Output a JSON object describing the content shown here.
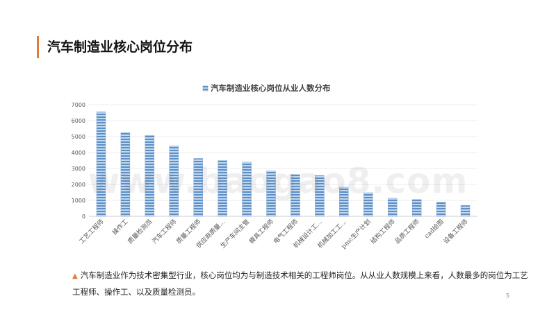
{
  "slide": {
    "title": "汽车制造业核心岗位分布",
    "accent_color": "#e07b39",
    "watermark": "www.baogao8.com",
    "page_number": "5"
  },
  "note": {
    "icon": "triangle-icon",
    "text": "汽车制造业作为技术密集型行业，核心岗位均为与制造技术相关的工程师岗位。从从业人数规模上来看，人数最多的岗位为工艺工程师、操作工、以及质量检测员。"
  },
  "chart_data": {
    "type": "bar",
    "title": "汽车制造业核心岗位从业人数分布",
    "legend": "top-center",
    "series": [
      {
        "name": "汽车制造业核心岗位从业人数分布",
        "color": "#5b8fc7",
        "values": [
          6550,
          5250,
          5080,
          4420,
          3630,
          3500,
          3400,
          2850,
          2620,
          2560,
          1830,
          1480,
          1130,
          1050,
          880,
          680
        ]
      }
    ],
    "categories": [
      "工艺工程师",
      "操作工",
      "质量检测员",
      "汽车工程师",
      "质量工程师",
      "供应商质量…",
      "生产车间主管",
      "模具工程师",
      "电气工程师",
      "机械设计工…",
      "机械加工工…",
      "pmc生产计划",
      "结构工程师",
      "品质工程师",
      "cad绘图",
      "设备工程师"
    ],
    "yticks": [
      0,
      1000,
      2000,
      3000,
      4000,
      5000,
      6000,
      7000
    ],
    "ylim": [
      0,
      7000
    ],
    "grid": true
  }
}
